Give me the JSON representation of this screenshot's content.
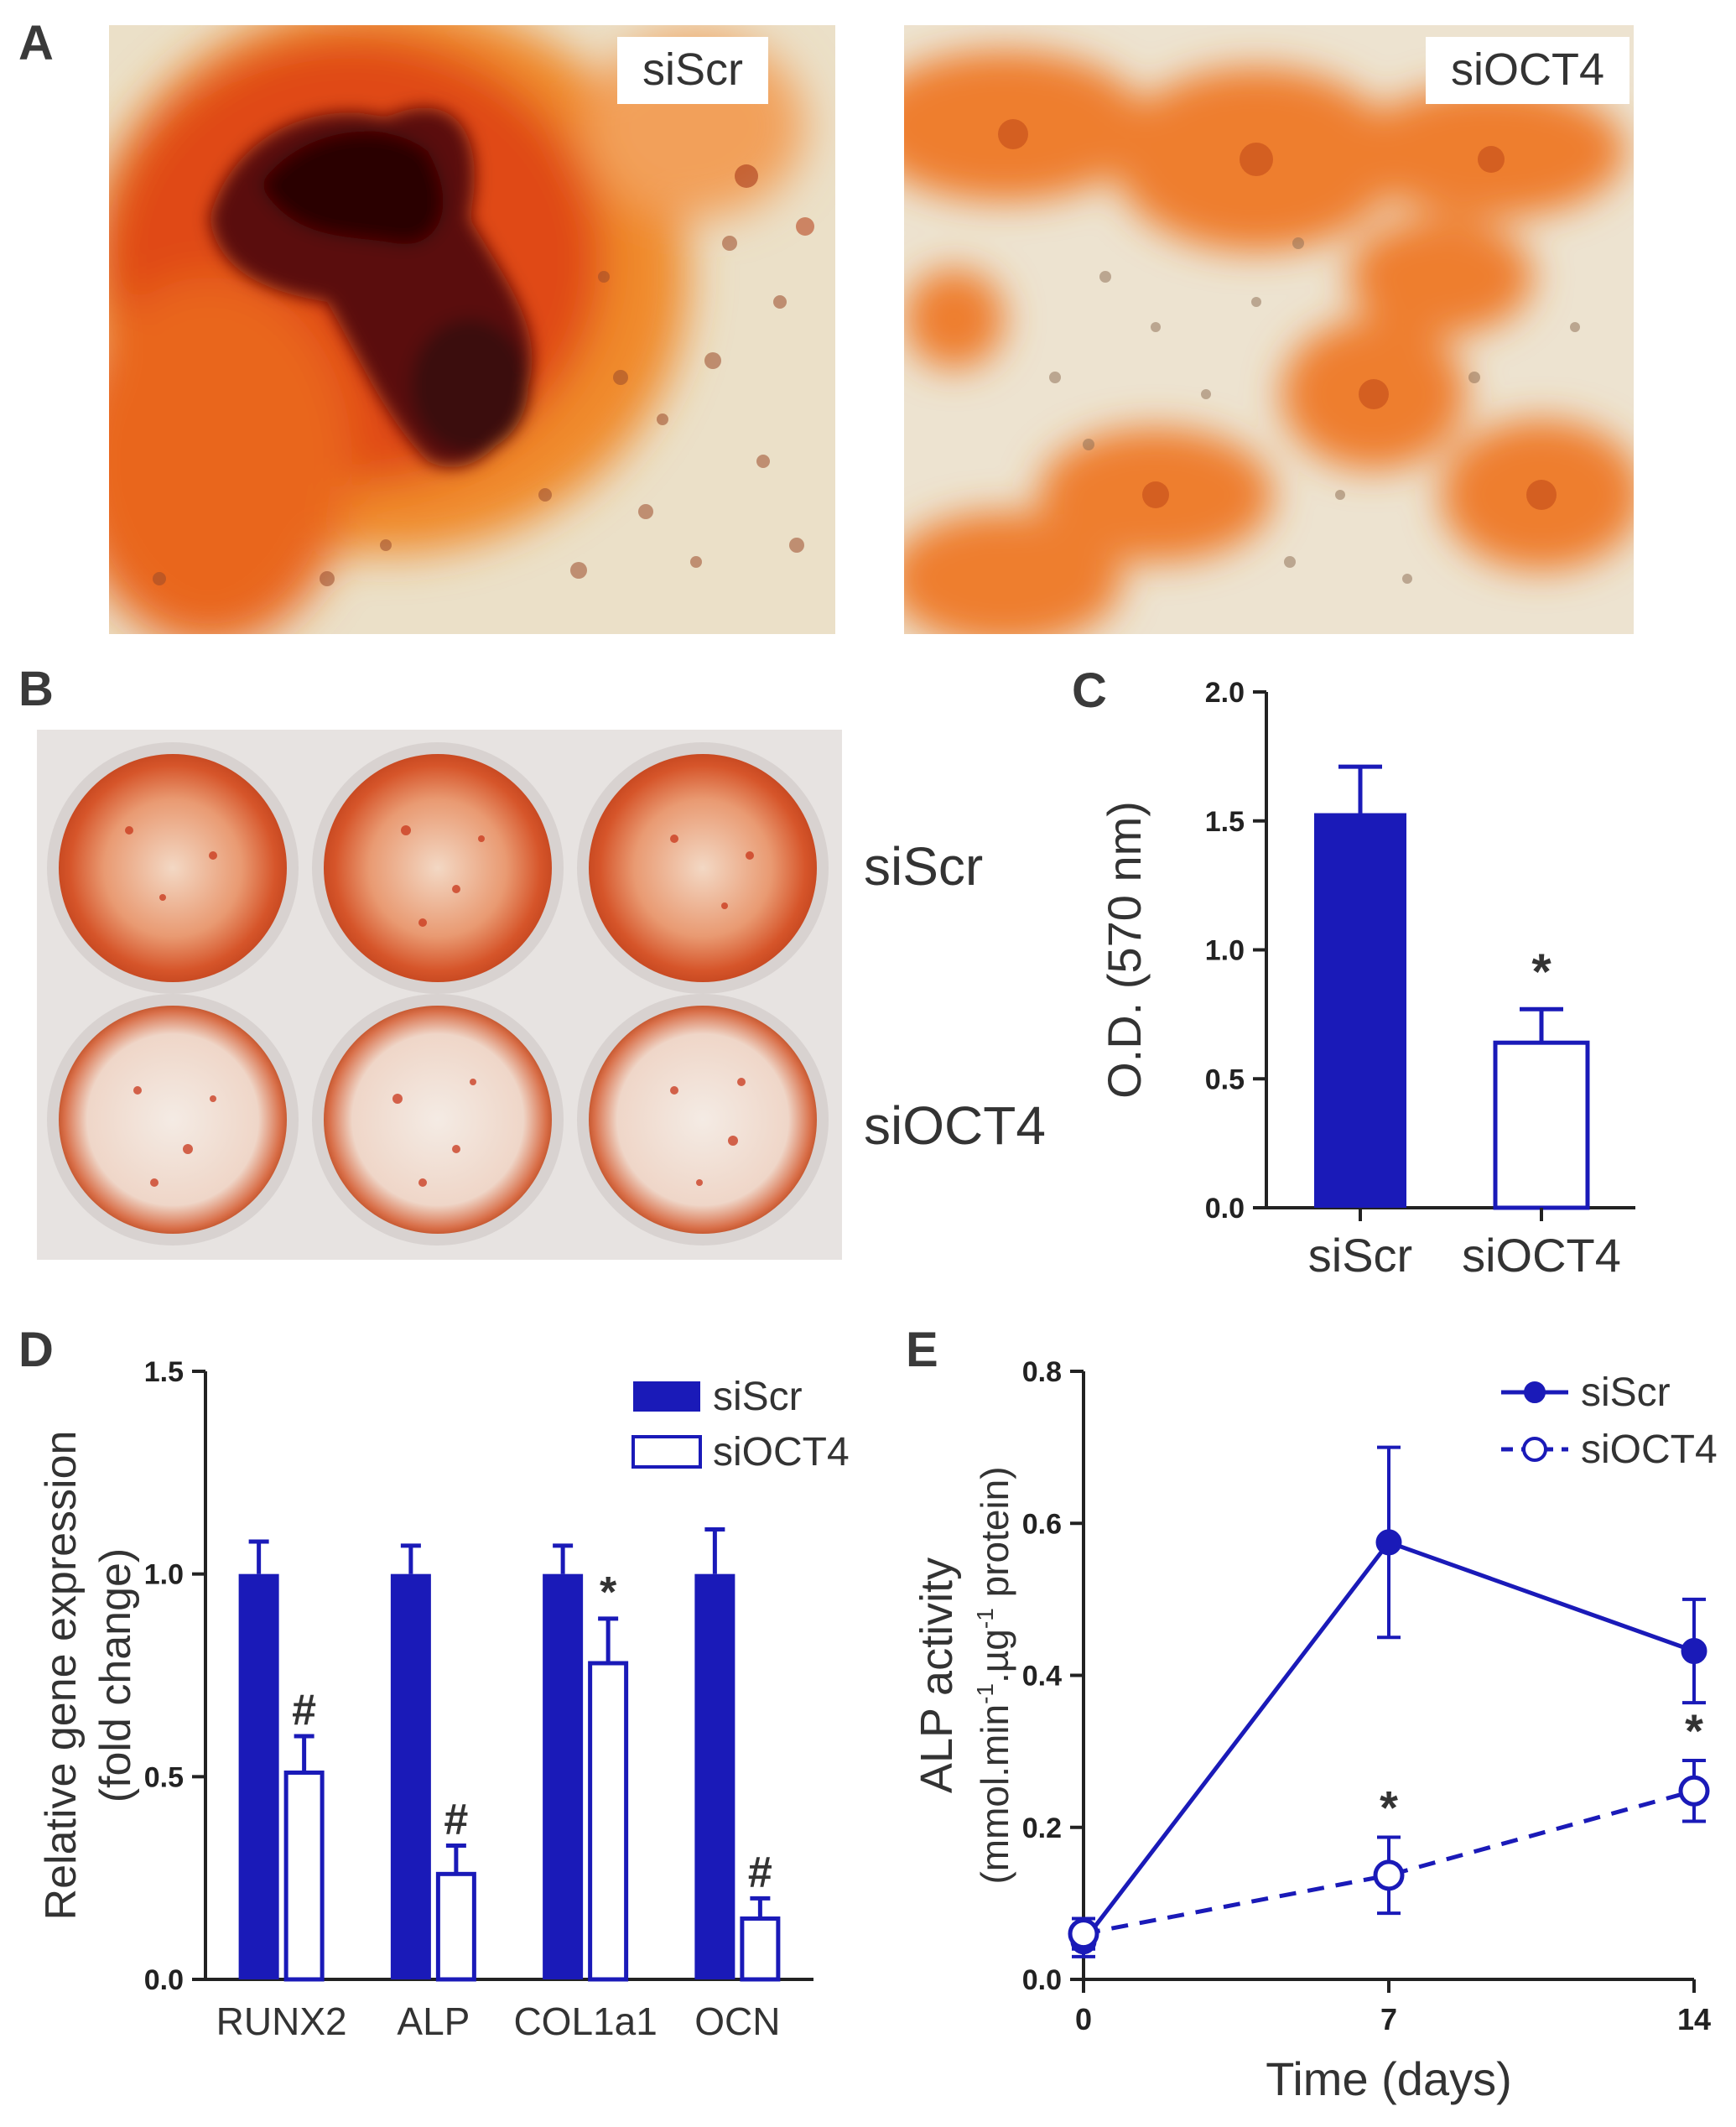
{
  "panels": {
    "a": {
      "letter": "A",
      "left_label": "siScr",
      "right_label": "siOCT4"
    },
    "b": {
      "letter": "B",
      "row_labels": [
        "siScr",
        "siOCT4"
      ]
    },
    "c": {
      "letter": "C"
    },
    "d": {
      "letter": "D"
    },
    "e": {
      "letter": "E"
    }
  },
  "colors": {
    "navy": "#1a1ab8",
    "axis": "#222222",
    "stain_red": "#d9410f",
    "stain_orange": "#ee7a2a",
    "stain_dark": "#3a0a08",
    "background_cells": "#ece2cf"
  },
  "chart_data": [
    {
      "panel": "C",
      "type": "bar",
      "categories": [
        "siScr",
        "siOCT4"
      ],
      "values": [
        1.53,
        0.64
      ],
      "errors": [
        0.18,
        0.13
      ],
      "fills": [
        "solid",
        "open"
      ],
      "annotations": [
        "",
        "*"
      ],
      "ylabel": "O.D. (570 nm)",
      "ylim": [
        0,
        2.0
      ],
      "yticks": [
        "0.0",
        "0.5",
        "1.0",
        "1.5",
        "2.0"
      ]
    },
    {
      "panel": "D",
      "type": "bar",
      "categories": [
        "RUNX2",
        "ALP",
        "COL1a1",
        "OCN"
      ],
      "series": [
        {
          "name": "siScr",
          "fill": "solid",
          "values": [
            1.0,
            1.0,
            1.0,
            1.0
          ],
          "errors": [
            0.08,
            0.07,
            0.07,
            0.11
          ],
          "annotations": [
            "",
            "",
            "",
            ""
          ]
        },
        {
          "name": "siOCT4",
          "fill": "open",
          "values": [
            0.51,
            0.26,
            0.78,
            0.15
          ],
          "errors": [
            0.09,
            0.07,
            0.11,
            0.05
          ],
          "annotations": [
            "#",
            "#",
            "*",
            "#"
          ]
        }
      ],
      "ylabel_lines": [
        "Relative gene expression",
        "(fold change)"
      ],
      "ylim": [
        0,
        1.5
      ],
      "yticks": [
        "0.0",
        "0.5",
        "1.0",
        "1.5"
      ],
      "legend": "top-right"
    },
    {
      "panel": "E",
      "type": "line",
      "x": [
        0,
        7,
        14
      ],
      "xticks": [
        "0",
        "7",
        "14"
      ],
      "series": [
        {
          "name": "siScr",
          "style": "solid",
          "marker": "filled",
          "values": [
            0.05,
            0.575,
            0.432
          ],
          "errors": [
            0.02,
            0.125,
            0.068
          ],
          "annotations": [
            "",
            "",
            ""
          ]
        },
        {
          "name": "siOCT4",
          "style": "dashed",
          "marker": "open",
          "values": [
            0.06,
            0.137,
            0.248
          ],
          "errors": [
            0.02,
            0.05,
            0.04
          ],
          "annotations": [
            "",
            "*",
            "*"
          ]
        }
      ],
      "xlabel": "Time (days)",
      "ylabel_line1": "ALP activity",
      "ylabel_line2_parts": [
        "(mmol.min",
        "-1",
        ".µg",
        "-1",
        " protein)"
      ],
      "xlim": [
        0,
        14
      ],
      "ylim": [
        0,
        0.8
      ],
      "yticks": [
        "0.0",
        "0.2",
        "0.4",
        "0.6",
        "0.8"
      ],
      "legend": "top-right"
    }
  ]
}
